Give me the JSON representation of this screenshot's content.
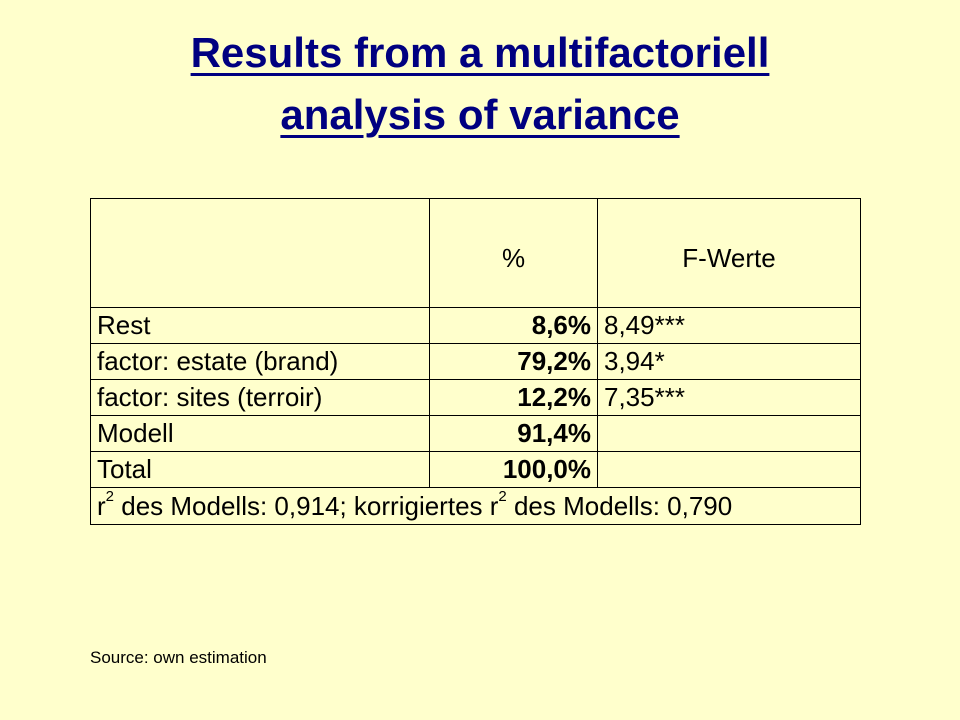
{
  "header": {
    "title_lines": [
      "Results from a multifactoriell",
      "analysis of variance"
    ]
  },
  "table": {
    "columns": [
      "%",
      "F-Werte"
    ],
    "rows": [
      [
        "Rest",
        "8,6%",
        "8,49***"
      ],
      [
        "factor: estate (brand)",
        "79,2%",
        "3,94*"
      ],
      [
        "factor: sites (terroir)",
        "12,2%",
        "7,35***"
      ],
      [
        "Modell",
        "91,4%"
      ],
      [
        "Total",
        "100,0%"
      ]
    ],
    "footer_parts": [
      "r",
      "2",
      " des Modells: 0,914; korrigiertes r",
      "2",
      " des Modells: 0,790"
    ]
  },
  "source": "Source: own estimation"
}
